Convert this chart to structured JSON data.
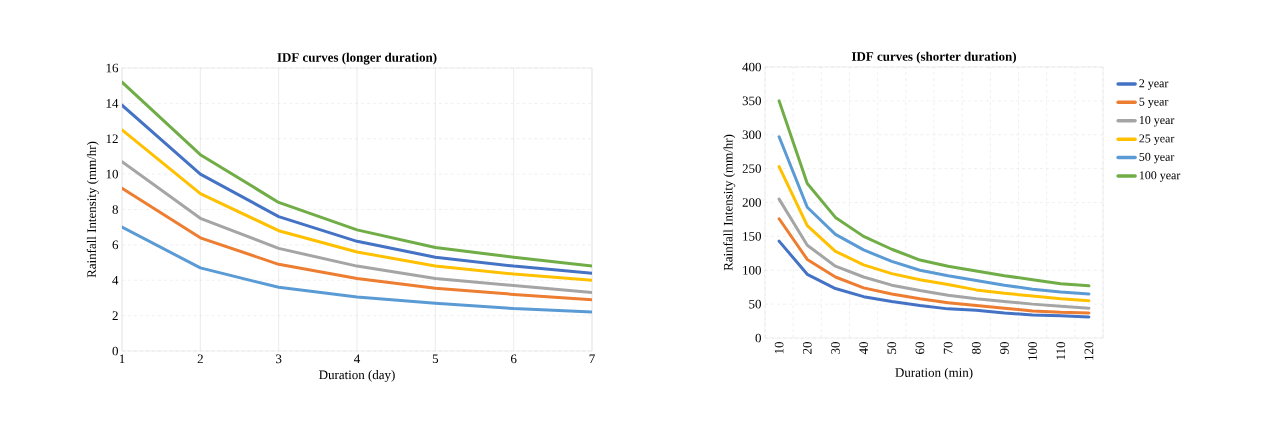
{
  "chart_data": [
    {
      "type": "line",
      "title": "IDF curves (longer duration)",
      "xlabel": "Duration  (day)",
      "ylabel": "Rainfall  Intensity  (mm/hr)",
      "x": [
        1,
        2,
        3,
        4,
        5,
        6,
        7
      ],
      "xlim": [
        1,
        7
      ],
      "xticks": [
        1,
        2,
        3,
        4,
        5,
        6,
        7
      ],
      "ylim": [
        0,
        16
      ],
      "yticks": [
        0,
        2,
        4,
        6,
        8,
        10,
        12,
        14,
        16
      ],
      "grid": true,
      "series": [
        {
          "color": "#5b9bd5",
          "values": [
            7.0,
            4.7,
            3.6,
            3.05,
            2.7,
            2.4,
            2.2
          ]
        },
        {
          "color": "#ed7d31",
          "values": [
            9.2,
            6.4,
            4.9,
            4.1,
            3.55,
            3.2,
            2.9
          ]
        },
        {
          "color": "#a5a5a5",
          "values": [
            10.7,
            7.5,
            5.8,
            4.8,
            4.1,
            3.7,
            3.3
          ]
        },
        {
          "color": "#ffc000",
          "values": [
            12.5,
            8.9,
            6.8,
            5.6,
            4.8,
            4.35,
            4.0
          ]
        },
        {
          "color": "#4472c4",
          "values": [
            13.9,
            10.0,
            7.6,
            6.2,
            5.3,
            4.8,
            4.4
          ]
        },
        {
          "color": "#70ad47",
          "values": [
            15.2,
            11.1,
            8.4,
            6.85,
            5.85,
            5.3,
            4.8
          ]
        }
      ]
    },
    {
      "type": "line",
      "title": "IDF curves (shorter duration)",
      "xlabel": "Duration  (min)",
      "ylabel": "Rainfall  Intensity  (mm/hr)",
      "categories": [
        "10",
        "20",
        "30",
        "40",
        "50",
        "60",
        "70",
        "80",
        "90",
        "100",
        "110",
        "120"
      ],
      "ylim": [
        0,
        400
      ],
      "yticks": [
        0,
        50,
        100,
        150,
        200,
        250,
        300,
        350,
        400
      ],
      "grid": true,
      "legend": "right",
      "series": [
        {
          "name": "2 year",
          "color": "#4472c4",
          "values": [
            143,
            94,
            73,
            61,
            54,
            48,
            43,
            41,
            37,
            34,
            33,
            31
          ]
        },
        {
          "name": "5 year",
          "color": "#ed7d31",
          "values": [
            176,
            116,
            90,
            74,
            65,
            58,
            52,
            48,
            44,
            40,
            38,
            37
          ]
        },
        {
          "name": "10 year",
          "color": "#a5a5a5",
          "values": [
            205,
            137,
            106,
            90,
            78,
            70,
            63,
            58,
            54,
            50,
            47,
            44
          ]
        },
        {
          "name": "25 year",
          "color": "#ffc000",
          "values": [
            253,
            166,
            128,
            108,
            95,
            86,
            79,
            71,
            66,
            62,
            58,
            55
          ]
        },
        {
          "name": "50 year",
          "color": "#5b9bd5",
          "values": [
            297,
            193,
            153,
            130,
            113,
            100,
            92,
            85,
            78,
            72,
            68,
            65
          ]
        },
        {
          "name": "100 year",
          "color": "#70ad47",
          "values": [
            350,
            228,
            178,
            150,
            131,
            115,
            106,
            99,
            92,
            86,
            80,
            77
          ]
        }
      ]
    }
  ]
}
